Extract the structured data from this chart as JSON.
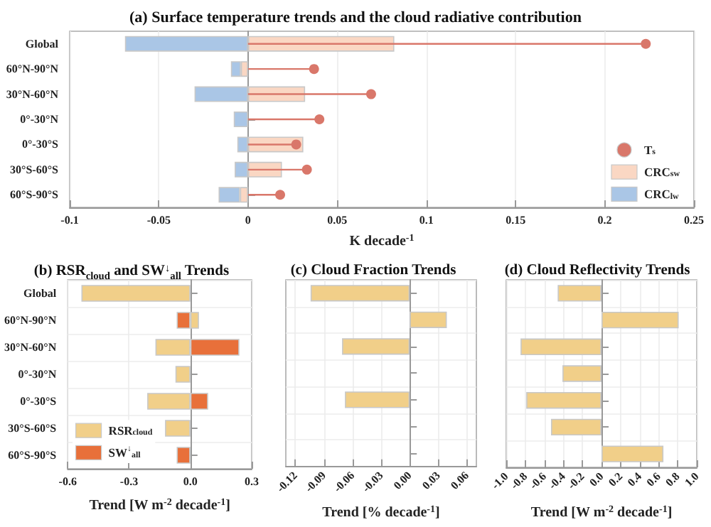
{
  "chart_data": [
    {
      "type": "bar",
      "orientation": "horizontal",
      "title": "(a) Surface temperature trends and the cloud radiative contribution",
      "xlabel": "K decade$^{-1}$",
      "categories": [
        "Global",
        "60°N-90°N",
        "30°N-60°N",
        "0°-30°N",
        "0°-30°S",
        "30°S-60°S",
        "60°S-90°S"
      ],
      "xlim": [
        -0.1,
        0.25
      ],
      "xticks": [
        -0.1,
        -0.05,
        0,
        0.05,
        0.1,
        0.15,
        0.2,
        0.25
      ],
      "grid": "x",
      "legend": "bottom right",
      "marker": "circle",
      "stacked": true,
      "series": [
        {
          "name": "T$_{s}$",
          "type": "lollipop",
          "color": "#d9776a",
          "values": [
            0.223,
            0.037,
            0.069,
            0.04,
            0.027,
            0.033,
            0.018
          ]
        },
        {
          "name": "CRC$_{sw}$",
          "color": "#fad7c3",
          "values": [
            0.082,
            -0.004,
            0.032,
            null,
            0.031,
            0.019,
            -0.0045
          ]
        },
        {
          "name": "CRC$_{lw}$",
          "color": "#aac6e6",
          "values": [
            -0.069,
            -0.0056,
            -0.03,
            -0.008,
            -0.006,
            -0.0075,
            -0.012
          ]
        }
      ]
    },
    {
      "type": "bar",
      "orientation": "horizontal",
      "title": "(b) RSR$_{cloud}$ and SW$^{↓}$$_{all}$ Trends",
      "xlabel": "Trend [W m$^{-2}$ decade$^{-1}$]",
      "categories": [
        "Global",
        "60°N-90°N",
        "30°N-60°N",
        "0°-30°N",
        "0°-30°S",
        "30°S-60°S",
        "60°S-90°S"
      ],
      "xlim": [
        -0.6,
        0.3
      ],
      "xticks": [
        -0.6,
        -0.3,
        {
          "value": 0,
          "label": "0.0"
        },
        0.3
      ],
      "grid": true,
      "legend": "bottom left",
      "series": [
        {
          "name": "RSR$_{cloud}$",
          "color": "#f1cf89",
          "values": [
            -0.533,
            0.042,
            -0.171,
            -0.073,
            -0.211,
            -0.124,
            null
          ]
        },
        {
          "name": "SW$^{↓}$$_{all}$",
          "color": "#e8703a",
          "values": [
            null,
            -0.067,
            0.24,
            null,
            0.087,
            null,
            -0.067
          ]
        }
      ]
    },
    {
      "type": "bar",
      "orientation": "horizontal",
      "title": "(c) Cloud Fraction Trends",
      "xlabel": "Trend [% decade$^{-1}$]",
      "categories": [
        null,
        null,
        null,
        null,
        null,
        null,
        null
      ],
      "xlim": [
        -0.13,
        0.07
      ],
      "xticks": [
        -0.12,
        -0.09,
        -0.06,
        -0.03,
        {
          "value": 0,
          "label": "0.00"
        },
        0.03,
        0.06
      ],
      "grid": true,
      "tick_labels": "x",
      "series": [
        {
          "color": "#f1cf89",
          "values": [
            -0.104,
            0.039,
            -0.071,
            null,
            -0.068,
            null,
            null
          ]
        }
      ]
    },
    {
      "type": "bar",
      "orientation": "horizontal",
      "title": "(d) Cloud Reflectivity Trends",
      "xlabel": "Trend [W m$^{-2}$ decade$^{-1}$]",
      "categories": [
        null,
        null,
        null,
        null,
        null,
        null,
        null
      ],
      "xlim": [
        -1,
        1
      ],
      "xticks": [
        {
          "value": -1,
          "label": "-1.0"
        },
        -0.8,
        -0.6,
        -0.4,
        -0.2,
        {
          "value": 0,
          "label": "0.0"
        },
        0.2,
        0.4,
        0.6,
        0.8,
        {
          "value": 1,
          "label": "1.0"
        }
      ],
      "grid": true,
      "tick_labels": "x",
      "series": [
        {
          "color": "#f1cf89",
          "values": [
            -0.46,
            0.81,
            -0.85,
            -0.41,
            -0.79,
            -0.53,
            0.65
          ]
        }
      ]
    }
  ]
}
